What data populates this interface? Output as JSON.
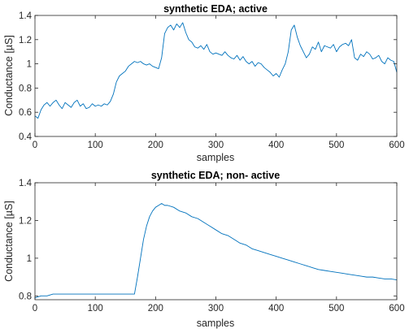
{
  "chart_data": [
    {
      "type": "line",
      "title": "synthetic EDA; active",
      "xlabel": "samples",
      "ylabel": "Conductance [µS]",
      "xlim": [
        0,
        600
      ],
      "ylim": [
        0.4,
        1.4
      ],
      "xticks": [
        "0",
        "100",
        "200",
        "300",
        "400",
        "500",
        "600"
      ],
      "yticks": [
        "0.4",
        "0.6",
        "0.8",
        "1",
        "1.2",
        "1.4"
      ],
      "grid": false,
      "color": "#0072BD",
      "series": [
        {
          "x": [
            0,
            5,
            10,
            15,
            20,
            25,
            30,
            35,
            40,
            45,
            50,
            55,
            60,
            65,
            70,
            75,
            80,
            85,
            90,
            95,
            100,
            105,
            110,
            115,
            120,
            125,
            130,
            135,
            140,
            145,
            150,
            155,
            160,
            165,
            170,
            175,
            180,
            185,
            190,
            195,
            200,
            205,
            210,
            215,
            220,
            225,
            230,
            235,
            240,
            245,
            250,
            255,
            260,
            265,
            270,
            275,
            280,
            285,
            290,
            295,
            300,
            305,
            310,
            315,
            320,
            325,
            330,
            335,
            340,
            345,
            350,
            355,
            360,
            365,
            370,
            375,
            380,
            385,
            390,
            395,
            400,
            405,
            410,
            415,
            420,
            425,
            430,
            435,
            440,
            445,
            450,
            455,
            460,
            465,
            470,
            475,
            480,
            485,
            490,
            495,
            500,
            505,
            510,
            515,
            520,
            525,
            530,
            535,
            540,
            545,
            550,
            555,
            560,
            565,
            570,
            575,
            580,
            585,
            590,
            595,
            600
          ],
          "y": [
            0.57,
            0.55,
            0.62,
            0.66,
            0.68,
            0.65,
            0.68,
            0.7,
            0.66,
            0.63,
            0.68,
            0.66,
            0.64,
            0.68,
            0.7,
            0.65,
            0.67,
            0.63,
            0.64,
            0.67,
            0.65,
            0.66,
            0.65,
            0.67,
            0.66,
            0.69,
            0.75,
            0.85,
            0.9,
            0.92,
            0.94,
            0.98,
            1.0,
            1.02,
            1.01,
            1.02,
            1.0,
            0.99,
            1.0,
            0.98,
            0.97,
            0.96,
            1.05,
            1.25,
            1.3,
            1.32,
            1.28,
            1.33,
            1.3,
            1.34,
            1.26,
            1.2,
            1.18,
            1.14,
            1.13,
            1.15,
            1.12,
            1.16,
            1.1,
            1.08,
            1.09,
            1.08,
            1.07,
            1.1,
            1.07,
            1.05,
            1.04,
            1.07,
            1.03,
            1.06,
            1.02,
            1.0,
            1.02,
            0.98,
            1.01,
            1.0,
            0.97,
            0.95,
            0.93,
            0.9,
            0.92,
            0.89,
            0.95,
            1.0,
            1.1,
            1.28,
            1.32,
            1.22,
            1.15,
            1.1,
            1.05,
            1.08,
            1.14,
            1.12,
            1.18,
            1.1,
            1.15,
            1.14,
            1.13,
            1.16,
            1.1,
            1.14,
            1.16,
            1.17,
            1.15,
            1.2,
            1.05,
            1.03,
            1.08,
            1.06,
            1.1,
            1.08,
            1.04,
            1.05,
            1.07,
            1.02,
            1.0,
            1.05,
            1.03,
            1.02,
            0.93
          ]
        }
      ]
    },
    {
      "type": "line",
      "title": "synthetic EDA; non- active",
      "xlabel": "samples",
      "ylabel": "Conductance [µS]",
      "xlim": [
        0,
        600
      ],
      "ylim": [
        0.78,
        1.4
      ],
      "xticks": [
        "0",
        "100",
        "200",
        "300",
        "400",
        "500",
        "600"
      ],
      "yticks": [
        "0.8",
        "1",
        "1.2",
        "1.4"
      ],
      "grid": false,
      "color": "#0072BD",
      "series": [
        {
          "x": [
            0,
            10,
            20,
            30,
            40,
            50,
            60,
            70,
            80,
            90,
            100,
            110,
            120,
            130,
            140,
            150,
            160,
            165,
            170,
            175,
            180,
            185,
            190,
            195,
            200,
            205,
            210,
            215,
            220,
            230,
            240,
            250,
            260,
            270,
            280,
            290,
            300,
            310,
            320,
            330,
            340,
            350,
            360,
            370,
            380,
            390,
            400,
            410,
            420,
            430,
            440,
            450,
            460,
            470,
            480,
            490,
            500,
            510,
            520,
            530,
            540,
            550,
            560,
            570,
            580,
            590,
            600
          ],
          "y": [
            0.79,
            0.8,
            0.8,
            0.81,
            0.81,
            0.81,
            0.81,
            0.81,
            0.81,
            0.81,
            0.81,
            0.81,
            0.81,
            0.81,
            0.81,
            0.81,
            0.81,
            0.81,
            0.9,
            1.0,
            1.1,
            1.17,
            1.22,
            1.25,
            1.27,
            1.28,
            1.29,
            1.28,
            1.28,
            1.27,
            1.25,
            1.24,
            1.22,
            1.21,
            1.19,
            1.17,
            1.15,
            1.13,
            1.12,
            1.1,
            1.08,
            1.07,
            1.05,
            1.04,
            1.03,
            1.02,
            1.01,
            1.0,
            0.99,
            0.98,
            0.97,
            0.96,
            0.95,
            0.94,
            0.935,
            0.93,
            0.925,
            0.92,
            0.915,
            0.91,
            0.905,
            0.9,
            0.9,
            0.895,
            0.89,
            0.89,
            0.885
          ]
        }
      ]
    }
  ]
}
